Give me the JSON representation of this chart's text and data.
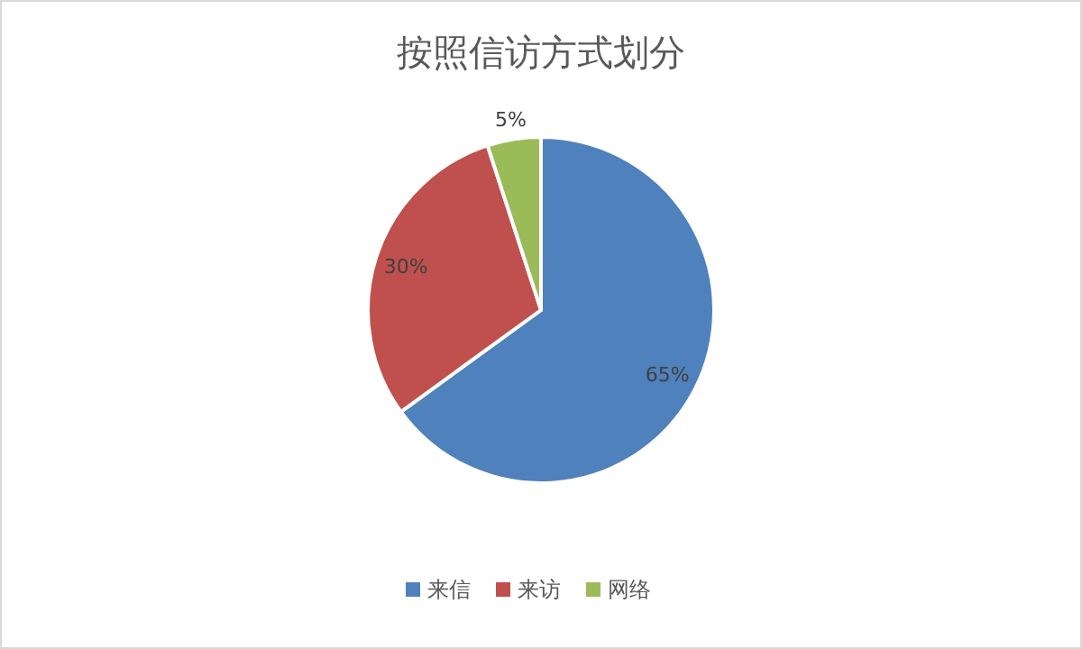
{
  "chart_data": {
    "type": "pie",
    "title": "按照信访方式划分",
    "categories": [
      "来信",
      "来访",
      "网络"
    ],
    "values": [
      65,
      30,
      5
    ],
    "colors": [
      "#4f81bd",
      "#c0504d",
      "#9bbb59"
    ],
    "value_labels": [
      "65%",
      "30%",
      "5%"
    ],
    "legend": "bottom"
  }
}
